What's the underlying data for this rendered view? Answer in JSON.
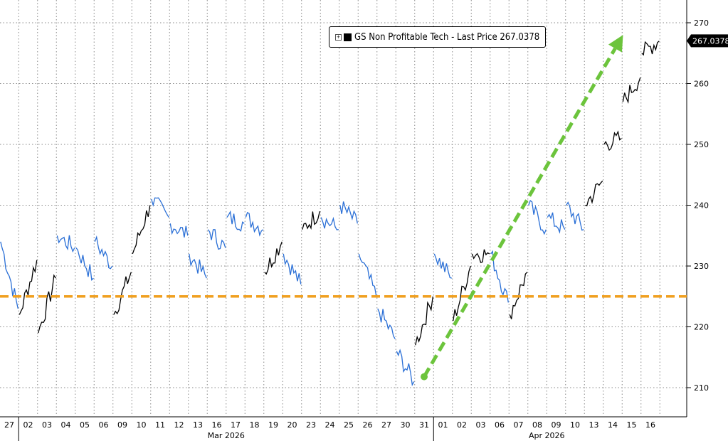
{
  "chart_data": {
    "type": "line",
    "title": "",
    "legend": {
      "expand_icon": "plus-box-icon",
      "label": "GS Non Profitable Tech - Last Price 267.0378",
      "placement": "top-right"
    },
    "last_price_tag": "267.0378",
    "y_axis": {
      "position": "right",
      "ylim": [
        205,
        272
      ],
      "ticks": [
        210,
        220,
        230,
        240,
        250,
        260,
        270
      ]
    },
    "x_axis": {
      "ticks": [
        "27",
        "02",
        "03",
        "04",
        "05",
        "06",
        "09",
        "10",
        "11",
        "12",
        "13",
        "16",
        "17",
        "18",
        "19",
        "20",
        "23",
        "24",
        "25",
        "26",
        "27",
        "30",
        "31",
        "01",
        "02",
        "03",
        "06",
        "07",
        "08",
        "09",
        "10",
        "13",
        "14",
        "15",
        "16"
      ],
      "months": [
        {
          "label": "Mar 2026",
          "from": 1,
          "to": 22
        },
        {
          "label": "Apr 2026",
          "from": 23,
          "to": 34
        }
      ]
    },
    "grid": true,
    "series": [
      {
        "color": "#000000",
        "down_color": "#2a6fd6",
        "daily_open_close": [
          [
            234,
            223
          ],
          [
            222,
            231
          ],
          [
            219,
            228
          ],
          [
            235,
            233
          ],
          [
            233,
            228
          ],
          [
            234,
            230
          ],
          [
            222,
            229
          ],
          [
            232,
            240
          ],
          [
            241,
            238
          ],
          [
            237,
            235
          ],
          [
            232,
            228
          ],
          [
            236,
            233
          ],
          [
            238,
            237
          ],
          [
            238,
            236
          ],
          [
            229,
            234
          ],
          [
            232,
            227
          ],
          [
            236,
            239
          ],
          [
            238,
            236
          ],
          [
            240,
            237
          ],
          [
            232,
            225
          ],
          [
            223,
            218
          ],
          [
            216,
            211
          ],
          [
            217,
            225
          ],
          [
            232,
            228
          ],
          [
            221,
            230
          ],
          [
            232,
            232
          ],
          [
            232,
            224
          ],
          [
            222,
            229
          ],
          [
            240,
            236
          ],
          [
            238,
            236
          ],
          [
            240,
            236
          ],
          [
            240,
            244
          ],
          [
            250,
            251
          ],
          [
            257,
            261
          ],
          [
            265,
            267
          ]
        ]
      }
    ],
    "annotations": [
      {
        "type": "horizontal-dashed-line",
        "value": 225,
        "color": "#f0a020"
      },
      {
        "type": "arrow",
        "color": "#6cc43c",
        "from": {
          "x": "31",
          "y": 211.8
        },
        "to": {
          "x": "15",
          "y": 268
        }
      }
    ],
    "colors": {
      "axis": "#000000",
      "grid": "#888888",
      "tag_bg": "#000000",
      "tag_text": "#ffffff"
    }
  }
}
